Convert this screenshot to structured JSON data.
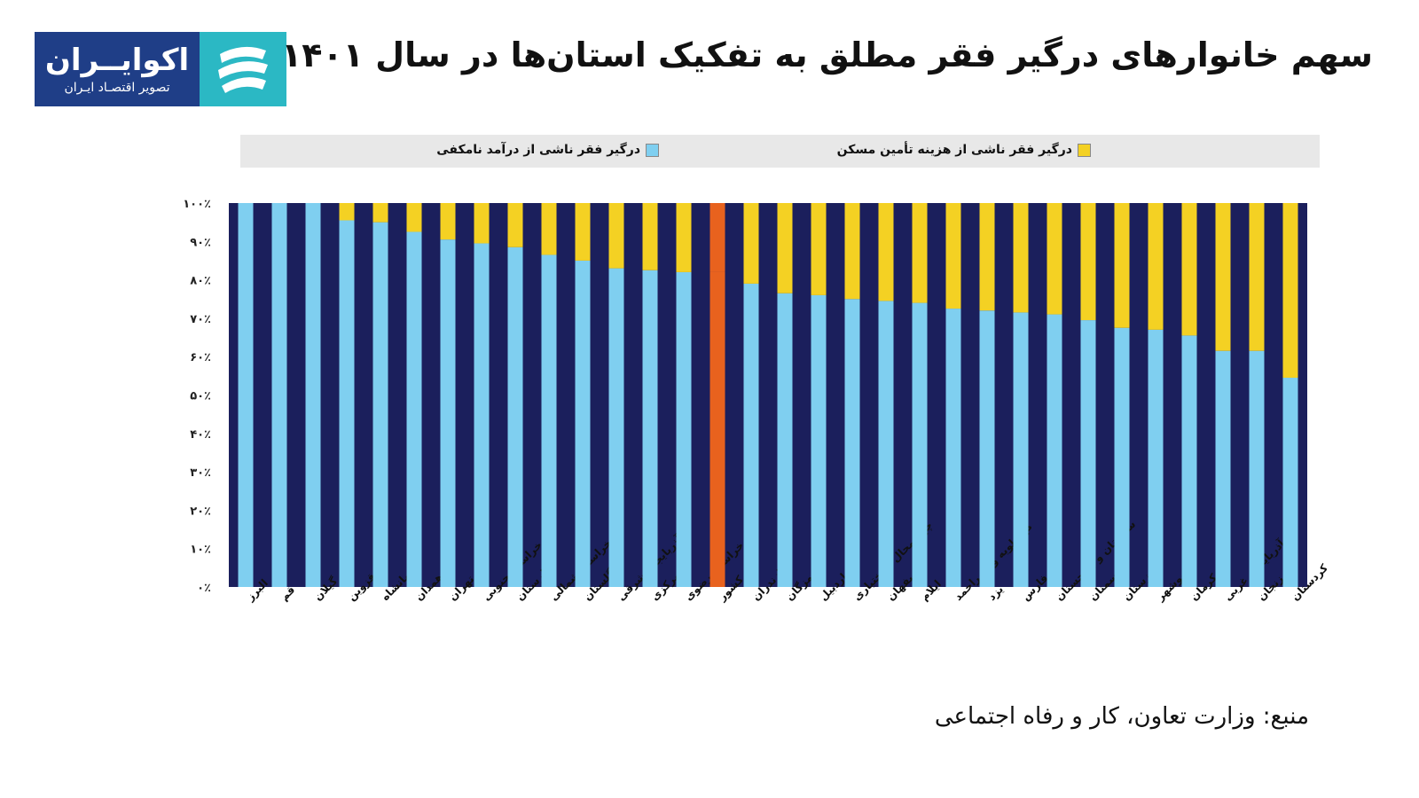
{
  "header": {
    "title": "سهم خانوارهای درگیر فقر مطلق به تفکیک استان‌ها در سال ۱۴۰۱"
  },
  "logo": {
    "name": "اکوایــران",
    "tagline": "تصویر اقتصـاد ایـران",
    "icon": "wave-stripes-icon"
  },
  "source": "منبع: وزارت تعاون، کار و رفاه اجتماعی",
  "colors": {
    "income": "#7fcff0",
    "housing": "#f4d123",
    "background": "#1b1f5c",
    "highlight": "#e8621e",
    "logo_bg": "#1f3e87",
    "logo_mark": "#2bb8c4"
  },
  "chart_data": {
    "type": "bar",
    "stacked": true,
    "categories": [
      "البرز",
      "قم",
      "گیلان",
      "قزوین",
      "کرمانشاه",
      "همدان",
      "تهران",
      "خراسان جنوبی",
      "لرستان",
      "خراسان شمالی",
      "گلستان",
      "آذربایجان شرقی",
      "مرکزی",
      "خراسان رضوی",
      "کل کشور",
      "مازندران",
      "هرمزگان",
      "اردبیل",
      "چهارمحال و بختیاری",
      "اصفهان",
      "ایلام",
      "کهگیلویه و بویراحمد",
      "یزد",
      "فارس",
      "سیستان و بلوچستان",
      "سمنان",
      "خوزستان",
      "بوشهر",
      "کرمان",
      "آذربایجان غربی",
      "زنجان",
      "کردستان"
    ],
    "highlight_category": "کل کشور",
    "series": [
      {
        "name": "درگیر فقر ناشی از درآمد نامکفی",
        "values": [
          100,
          100,
          100,
          95.5,
          95,
          92.5,
          90.5,
          89.5,
          88.5,
          86.5,
          85,
          83,
          82.5,
          82,
          82,
          79,
          76.5,
          76,
          75,
          74.5,
          74,
          72.5,
          72,
          71.5,
          71,
          69.5,
          67.5,
          67,
          65.5,
          61.5,
          61.5,
          54.5
        ]
      },
      {
        "name": "درگیر فقر ناشی از هزینه تأمین مسکن",
        "values": [
          0,
          0,
          0,
          4.5,
          5,
          7.5,
          9.5,
          10.5,
          11.5,
          13.5,
          15,
          17,
          17.5,
          18,
          18,
          21,
          23.5,
          24,
          25,
          25.5,
          26,
          27.5,
          28,
          28.5,
          29,
          30.5,
          32.5,
          33,
          34.5,
          38.5,
          38.5,
          45.5
        ]
      }
    ],
    "yticks": [
      "۰٪",
      "۱۰٪",
      "۲۰٪",
      "۳۰٪",
      "۴۰٪",
      "۵۰٪",
      "۶۰٪",
      "۷۰٪",
      "۸۰٪",
      "۹۰٪",
      "۱۰۰٪"
    ],
    "ylim": [
      0,
      100
    ],
    "grid": false,
    "legend": "top"
  }
}
